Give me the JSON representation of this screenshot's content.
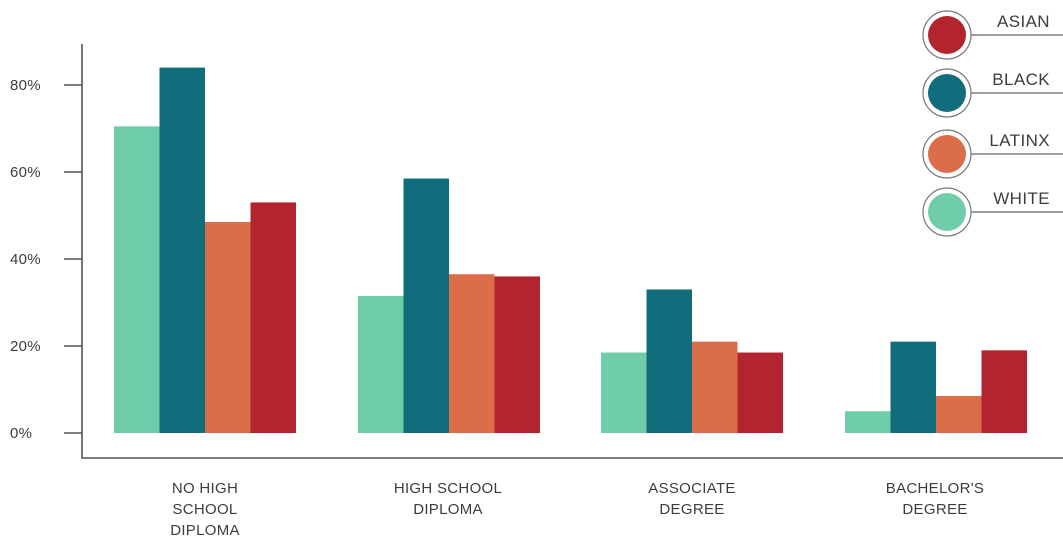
{
  "chart_data": {
    "type": "bar",
    "title": "",
    "xlabel": "",
    "ylabel": "",
    "ylim": [
      0,
      90
    ],
    "y_ticks": [
      "0%",
      "20%",
      "40%",
      "60%",
      "80%"
    ],
    "y_tick_values": [
      0,
      20,
      40,
      60,
      80
    ],
    "grid": false,
    "legend_position": "top-right",
    "categories": [
      "NO HIGH SCHOOL DIPLOMA",
      "HIGH SCHOOL DIPLOMA",
      "ASSOCIATE DEGREE",
      "BACHELOR'S DEGREE"
    ],
    "category_label_lines": [
      [
        "NO HIGH",
        "SCHOOL",
        "DIPLOMA"
      ],
      [
        "HIGH SCHOOL",
        "DIPLOMA"
      ],
      [
        "ASSOCIATE",
        "DEGREE"
      ],
      [
        "BACHELOR'S",
        "DEGREE"
      ]
    ],
    "series": [
      {
        "name": "WHITE",
        "color": "#70cdaa",
        "values": [
          70.5,
          31.5,
          18.5,
          5
        ]
      },
      {
        "name": "BLACK",
        "color": "#116c7c",
        "values": [
          84,
          58.5,
          33,
          21
        ]
      },
      {
        "name": "LATINX",
        "color": "#db6d4a",
        "values": [
          48.5,
          36.5,
          21,
          8.5
        ]
      },
      {
        "name": "ASIAN",
        "color": "#b2252f",
        "values": [
          53,
          36,
          18.5,
          19
        ]
      }
    ],
    "legend_order": [
      "ASIAN",
      "BLACK",
      "LATINX",
      "WHITE"
    ]
  }
}
